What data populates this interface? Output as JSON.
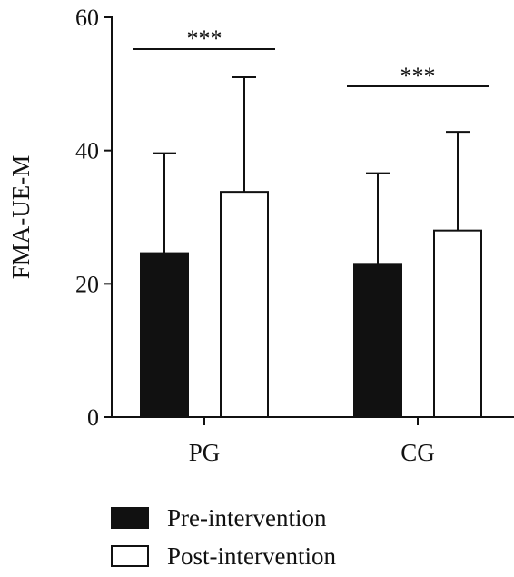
{
  "chart_data": {
    "type": "bar",
    "ylabel": "FMA-UE-M",
    "xlabel": "",
    "ylim": [
      0,
      60
    ],
    "yticks": [
      0,
      20,
      40,
      60
    ],
    "categories": [
      "PG",
      "CG"
    ],
    "series": [
      {
        "name": "Pre-intervention",
        "values": [
          24.6,
          23.0
        ],
        "error_upper": [
          39.6,
          36.6
        ],
        "fill": "#111111"
      },
      {
        "name": "Post-intervention",
        "values": [
          33.8,
          28.0
        ],
        "error_upper": [
          51.0,
          42.8
        ],
        "fill": "#ffffff"
      }
    ],
    "significance": [
      {
        "category": "PG",
        "label": "***"
      },
      {
        "category": "CG",
        "label": "***"
      }
    ],
    "legend_position": "bottom-left",
    "grid": false
  }
}
